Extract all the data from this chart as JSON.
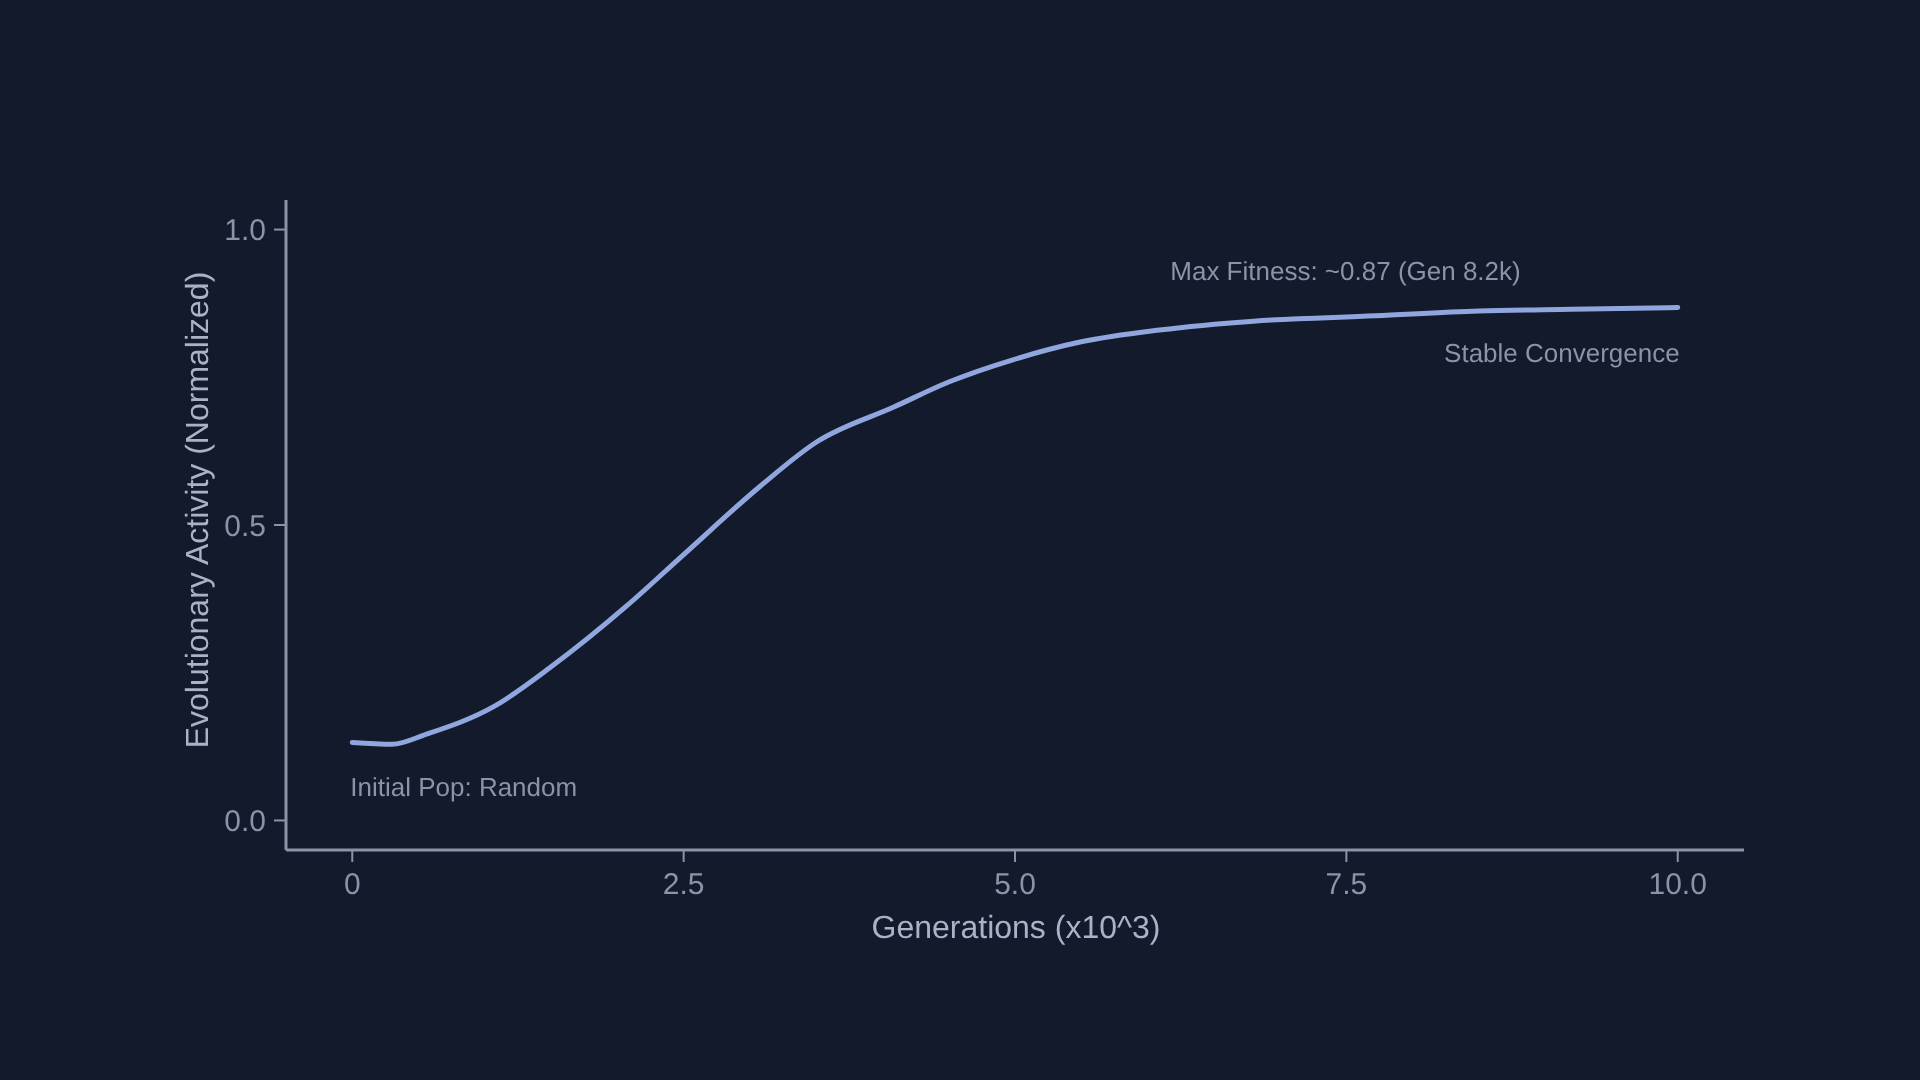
{
  "chart_data": {
    "type": "line",
    "xlabel": "Generations (x10^3)",
    "ylabel": "Evolutionary Activity (Normalized)",
    "xlim": [
      -0.5,
      10.5
    ],
    "ylim": [
      -0.05,
      1.05
    ],
    "xticks": [
      {
        "value": 0,
        "label": "0"
      },
      {
        "value": 2.5,
        "label": "2.5"
      },
      {
        "value": 5,
        "label": "5.0"
      },
      {
        "value": 7.5,
        "label": "7.5"
      },
      {
        "value": 10,
        "label": "10.0"
      }
    ],
    "yticks": [
      {
        "value": 0,
        "label": "0.0"
      },
      {
        "value": 0.5,
        "label": "0.5"
      },
      {
        "value": 1,
        "label": "1.0"
      }
    ],
    "series": [
      {
        "color": "#8fa6de",
        "x": [
          0,
          0.3,
          0.56,
          1.07,
          1.5,
          2.07,
          2.5,
          3.08,
          3.5,
          4.09,
          4.5,
          4.99,
          5.5,
          6.09,
          6.8,
          7.72,
          8.5,
          9.2,
          10
        ],
        "values": [
          0.132,
          0.129,
          0.146,
          0.193,
          0.26,
          0.363,
          0.45,
          0.566,
          0.64,
          0.7,
          0.742,
          0.78,
          0.81,
          0.83,
          0.845,
          0.854,
          0.862,
          0.865,
          0.868
        ]
      }
    ],
    "annotations": [
      {
        "text": "Max Fitness: ~0.87 (Gen 8.2k)",
        "x": 7.72,
        "y": 0.854
      },
      {
        "text": "Stable Convergence",
        "x": 10,
        "y": 0.868
      },
      {
        "text": "Initial Pop: Random",
        "x": 0,
        "y": 0.132
      }
    ],
    "grid": false,
    "marker": "none",
    "line_style": "solid"
  }
}
